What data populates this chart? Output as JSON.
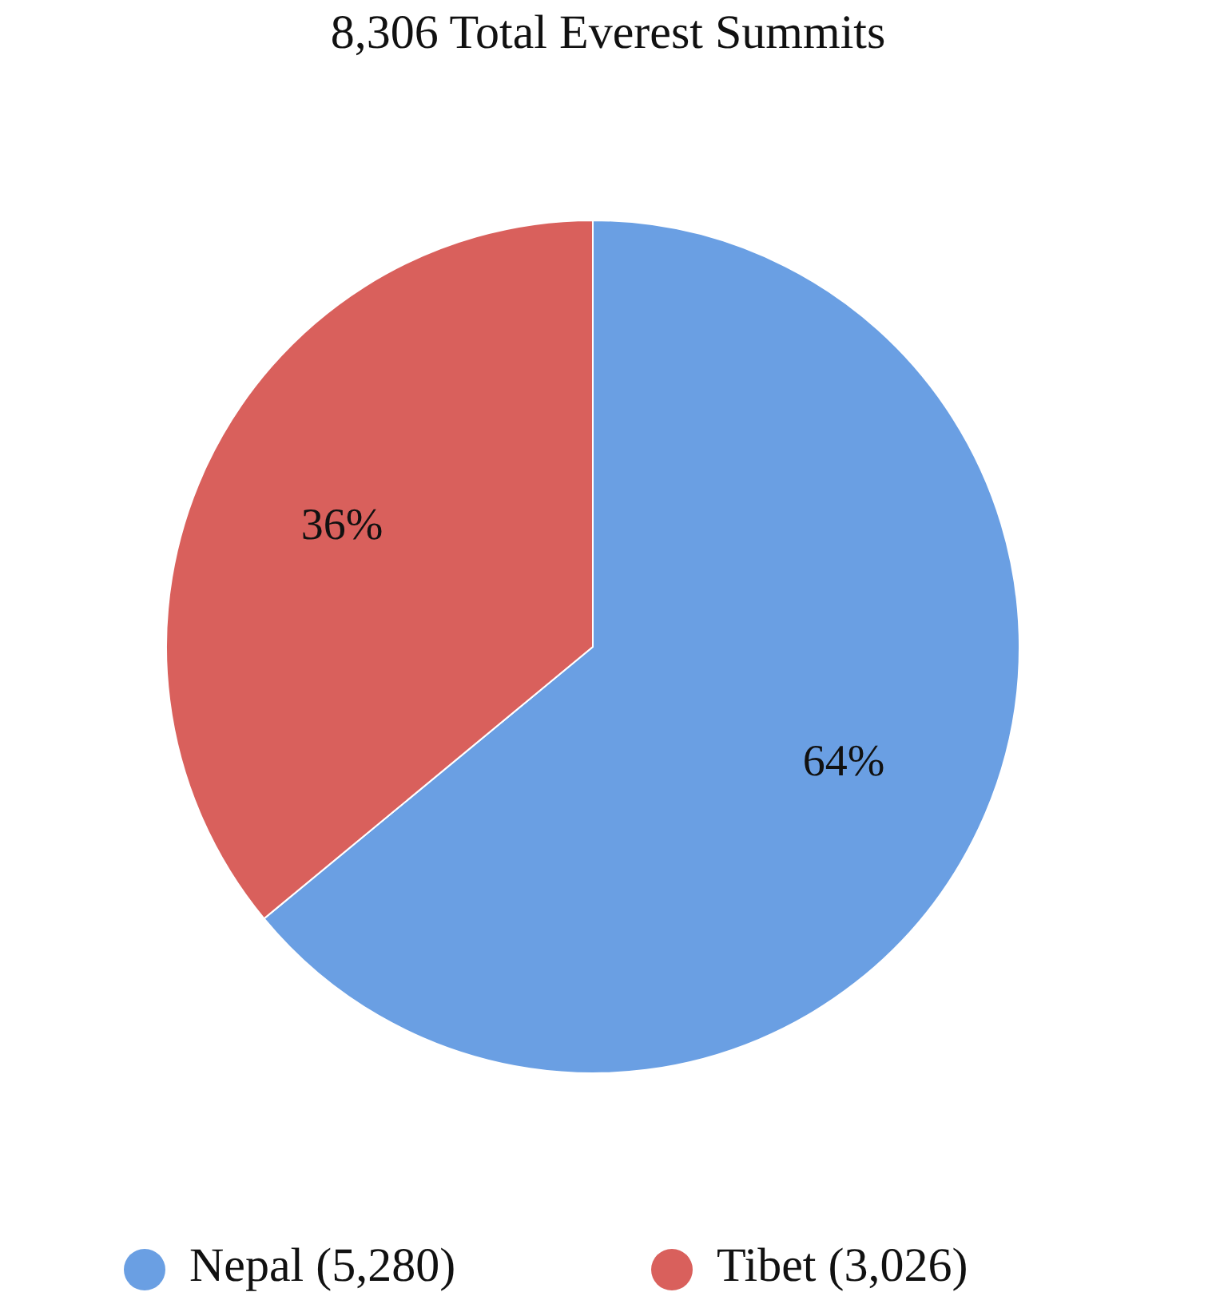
{
  "chart_data": {
    "type": "pie",
    "title": "8,306 Total Everest Summits",
    "categories": [
      "Nepal (5,280)",
      "Tibet (3,026)"
    ],
    "values": [
      64,
      36
    ],
    "colors": [
      "#6a9fe3",
      "#d9605c"
    ],
    "value_labels": [
      "64%",
      "36%"
    ],
    "legend": "bottom"
  }
}
